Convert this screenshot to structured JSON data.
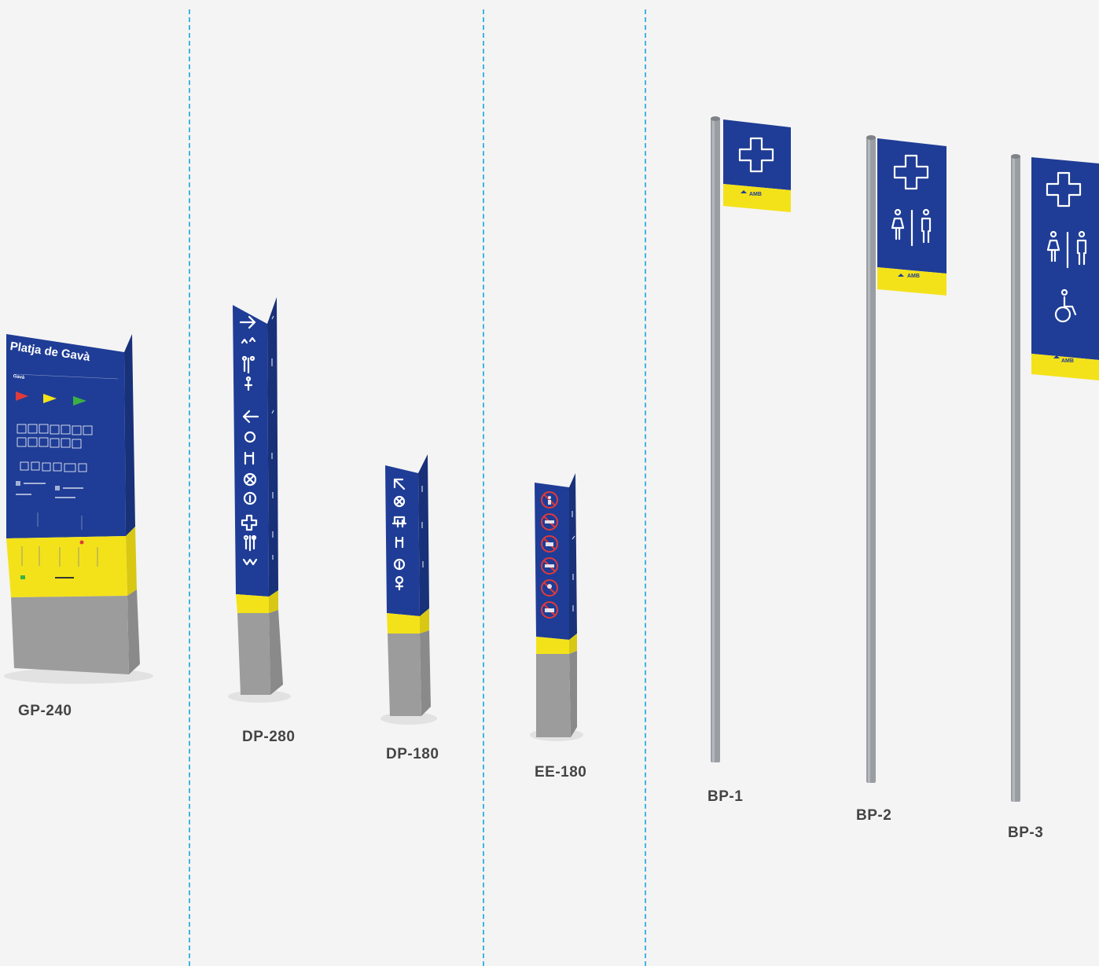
{
  "labels": {
    "gp240": "GP-240",
    "dp280": "DP-280",
    "dp180": "DP-180",
    "ee180": "EE-180",
    "bp1": "BP-1",
    "bp2": "BP-2",
    "bp3": "BP-3"
  },
  "gp240_sign": {
    "title": "Platja de Gavà",
    "subtitle": "Gavà"
  },
  "bp_sign_brand": "AMB",
  "colors": {
    "navy": "#1f3d96",
    "yellow": "#f3e21a",
    "grey": "#9c9c9c",
    "divider": "#3fb6df"
  },
  "icons": [
    "arrow-right-icon",
    "arrow-left-icon",
    "arrow-up-left-icon",
    "cross-icon",
    "toilets-icon",
    "wheelchair-icon",
    "info-icon",
    "shower-icon",
    "lifeguard-icon",
    "prohibited-icon",
    "flag-icon"
  ]
}
